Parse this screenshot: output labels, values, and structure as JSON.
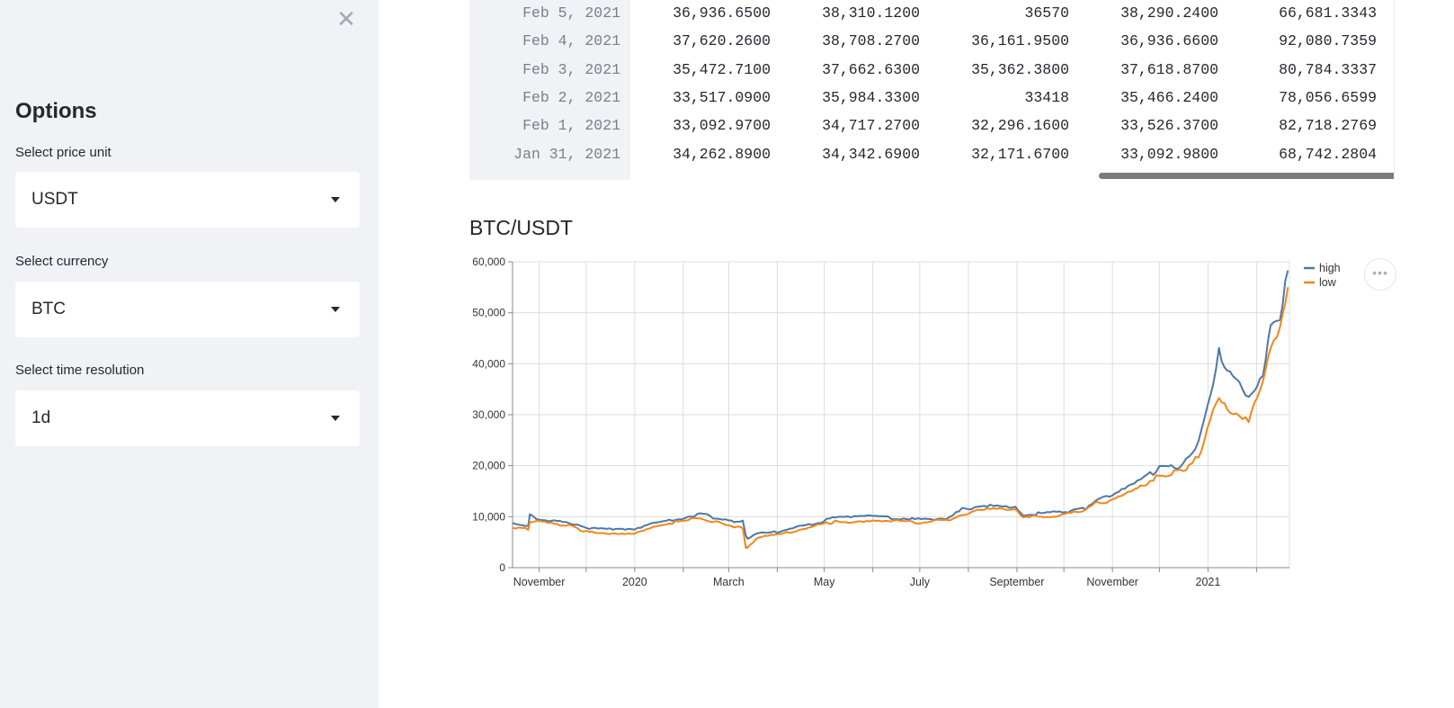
{
  "sidebar": {
    "close_icon": "close-icon",
    "title": "Options",
    "fields": [
      {
        "label": "Select price unit",
        "value": "USDT"
      },
      {
        "label": "Select currency",
        "value": "BTC"
      },
      {
        "label": "Select time resolution",
        "value": "1d"
      }
    ]
  },
  "table": {
    "rows": [
      {
        "date": "Feb 5, 2021",
        "open": "36,936.6500",
        "high": "38,310.1200",
        "low": "36570",
        "close": "38,290.2400",
        "volume": "66,681.3343"
      },
      {
        "date": "Feb 4, 2021",
        "open": "37,620.2600",
        "high": "38,708.2700",
        "low": "36,161.9500",
        "close": "36,936.6600",
        "volume": "92,080.7359"
      },
      {
        "date": "Feb 3, 2021",
        "open": "35,472.7100",
        "high": "37,662.6300",
        "low": "35,362.3800",
        "close": "37,618.8700",
        "volume": "80,784.3337"
      },
      {
        "date": "Feb 2, 2021",
        "open": "33,517.0900",
        "high": "35,984.3300",
        "low": "33418",
        "close": "35,466.2400",
        "volume": "78,056.6599"
      },
      {
        "date": "Feb 1, 2021",
        "open": "33,092.9700",
        "high": "34,717.2700",
        "low": "32,296.1600",
        "close": "33,526.3700",
        "volume": "82,718.2769"
      },
      {
        "date": "Jan 31, 2021",
        "open": "34,262.8900",
        "high": "34,342.6900",
        "low": "32,171.6700",
        "close": "33,092.9800",
        "volume": "68,742.2804"
      }
    ]
  },
  "chart": {
    "title": "BTC/USDT",
    "menu_icon": "more-options-icon",
    "menu_glyph": "•••"
  },
  "chart_data": {
    "type": "line",
    "title": "BTC/USDT",
    "xlabel": "",
    "ylabel": "",
    "ylim": [
      0,
      60000
    ],
    "y_ticks": [
      "0",
      "10,000",
      "20,000",
      "30,000",
      "40,000",
      "50,000",
      "60,000"
    ],
    "x_ticks": [
      "November",
      "2020",
      "March",
      "May",
      "July",
      "September",
      "November",
      "2021"
    ],
    "grid": true,
    "legend_position": "top-right",
    "series": [
      {
        "name": "high",
        "color": "#4c78a8",
        "x": [
          "2019-10-15",
          "2019-10-25",
          "2019-10-26",
          "2019-11-01",
          "2019-11-20",
          "2019-12-01",
          "2019-12-18",
          "2020-01-01",
          "2020-01-15",
          "2020-02-12",
          "2020-02-28",
          "2020-03-10",
          "2020-03-12",
          "2020-03-13",
          "2020-03-20",
          "2020-04-01",
          "2020-04-29",
          "2020-05-08",
          "2020-05-20",
          "2020-06-01",
          "2020-06-30",
          "2020-07-20",
          "2020-07-28",
          "2020-08-15",
          "2020-08-31",
          "2020-09-05",
          "2020-09-30",
          "2020-10-15",
          "2020-10-21",
          "2020-11-01",
          "2020-11-15",
          "2020-12-01",
          "2020-12-16",
          "2020-12-26",
          "2021-01-08",
          "2021-01-15",
          "2021-01-27",
          "2021-02-05",
          "2021-02-10",
          "2021-02-16",
          "2021-02-21"
        ],
        "values": [
          8700,
          8300,
          10500,
          9500,
          8800,
          7800,
          7500,
          7400,
          8800,
          10500,
          9300,
          9000,
          6300,
          5800,
          6900,
          7000,
          9000,
          10000,
          9800,
          10100,
          9400,
          9800,
          11500,
          12400,
          12000,
          10500,
          10900,
          11700,
          13200,
          14000,
          16500,
          19500,
          20000,
          24500,
          41900,
          39000,
          34000,
          38300,
          48000,
          50000,
          58300
        ]
      },
      {
        "name": "low",
        "color": "#f58518",
        "x": [
          "2019-10-15",
          "2019-10-25",
          "2019-10-26",
          "2019-11-01",
          "2019-11-20",
          "2019-12-01",
          "2019-12-18",
          "2020-01-01",
          "2020-01-15",
          "2020-02-12",
          "2020-02-28",
          "2020-03-10",
          "2020-03-12",
          "2020-03-13",
          "2020-03-20",
          "2020-04-01",
          "2020-04-29",
          "2020-05-08",
          "2020-05-20",
          "2020-06-01",
          "2020-06-30",
          "2020-07-20",
          "2020-07-28",
          "2020-08-15",
          "2020-08-31",
          "2020-09-05",
          "2020-09-30",
          "2020-10-15",
          "2020-10-21",
          "2020-11-01",
          "2020-11-15",
          "2020-12-01",
          "2020-12-16",
          "2020-12-26",
          "2021-01-08",
          "2021-01-15",
          "2021-01-27",
          "2021-02-05",
          "2021-02-10",
          "2021-02-16",
          "2021-02-21"
        ],
        "values": [
          8000,
          7500,
          8800,
          9000,
          8300,
          7000,
          6700,
          6800,
          8300,
          9700,
          8500,
          7700,
          4000,
          3800,
          5900,
          6400,
          8500,
          9000,
          9000,
          9400,
          8900,
          9300,
          10500,
          11500,
          11200,
          9800,
          10300,
          11300,
          12500,
          13400,
          15500,
          18000,
          19000,
          22000,
          33500,
          30000,
          28500,
          36200,
          43000,
          46000,
          55000
        ]
      }
    ]
  }
}
